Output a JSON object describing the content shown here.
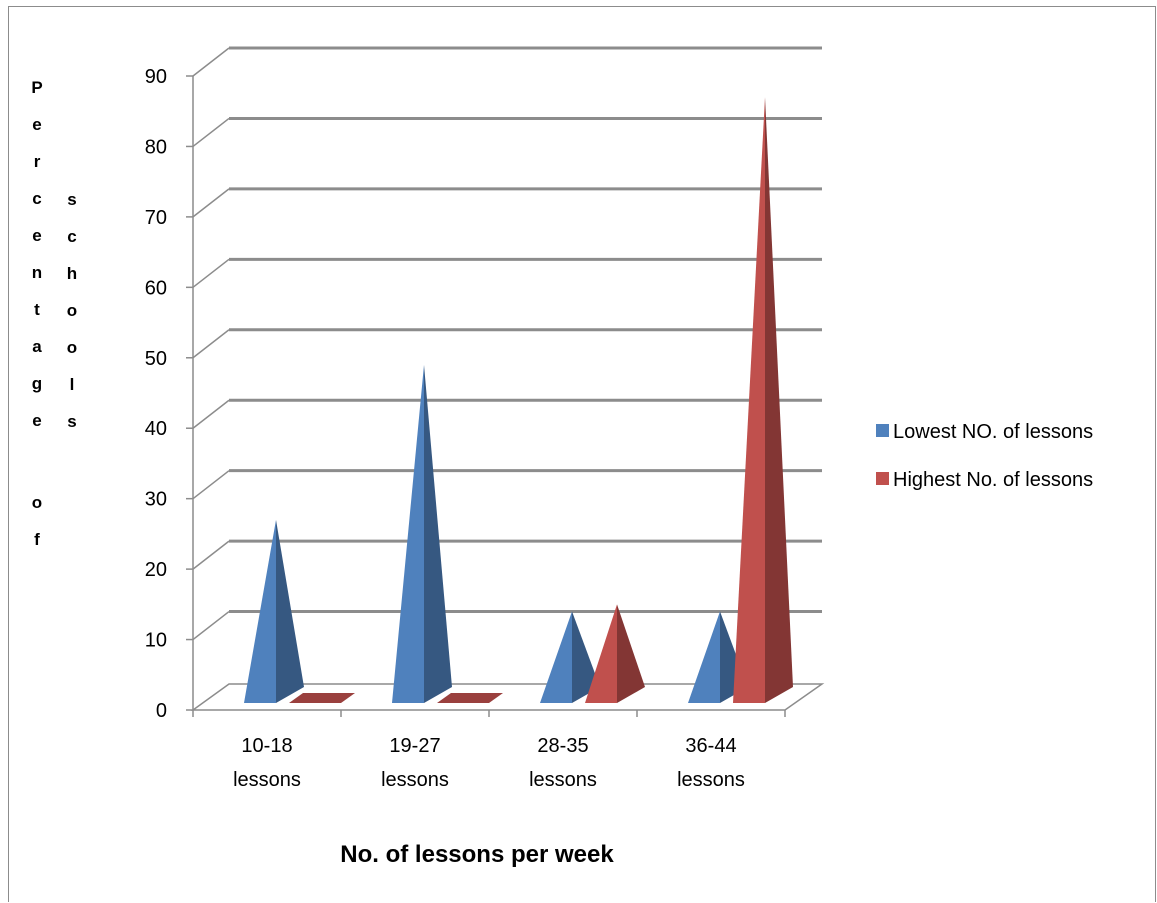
{
  "chart_data": {
    "type": "bar",
    "shape": "3d-pyramid",
    "title": "",
    "xlabel": "No. of lessons per week",
    "ylabel": "Percentage of schools",
    "ylabel_columns": [
      "Percentage",
      "of",
      "schools"
    ],
    "categories": [
      [
        "10-18",
        "lessons"
      ],
      [
        "19-27",
        "lessons"
      ],
      [
        "28-35",
        "lessons"
      ],
      [
        "36-44",
        "lessons"
      ]
    ],
    "series": [
      {
        "name": "Lowest NO. of lessons",
        "values": [
          26,
          48,
          13,
          13
        ],
        "color": "#4f81bd"
      },
      {
        "name": "Highest No. of lessons",
        "values": [
          0,
          0,
          14,
          86
        ],
        "color": "#c0504d"
      }
    ],
    "ylim": [
      0,
      90
    ],
    "yticks": [
      0,
      10,
      20,
      30,
      40,
      50,
      60,
      70,
      80,
      90
    ],
    "grid": true,
    "legend": "right"
  }
}
